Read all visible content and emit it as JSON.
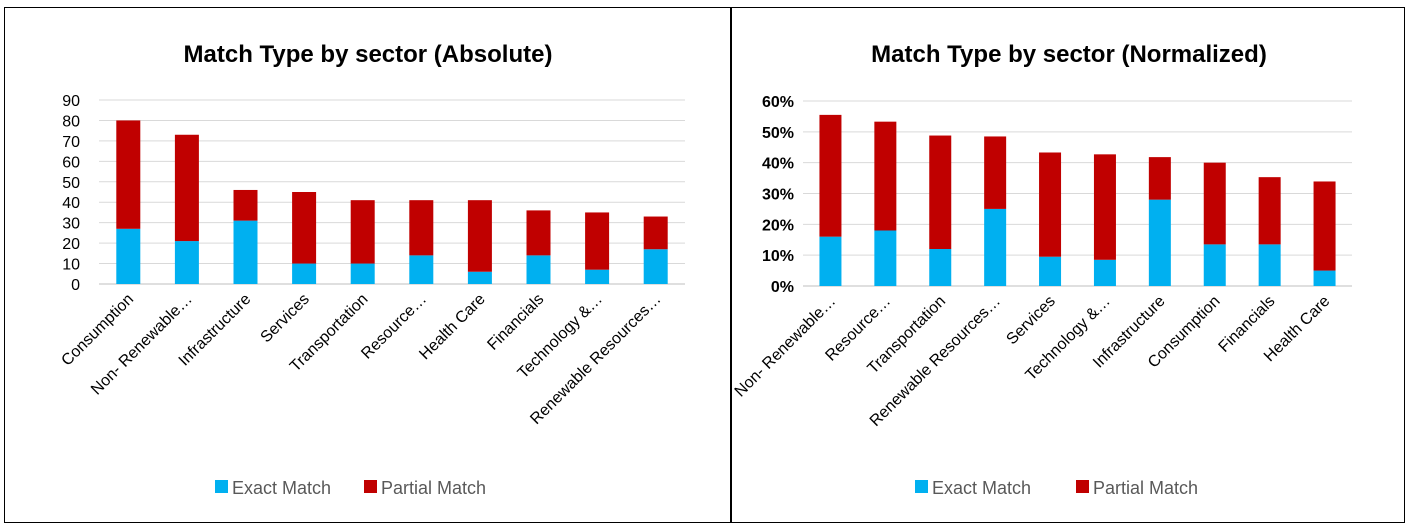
{
  "colors": {
    "exact": "#00B0F0",
    "partial": "#C00000",
    "grid": "#D9D9D9",
    "axis": "#BFBFBF"
  },
  "chart_data": [
    {
      "type": "bar",
      "stacked": true,
      "title": "Match Type by sector (Absolute)",
      "categories": [
        "Consumption",
        "Non- Renewable…",
        "Infrastructure",
        "Services",
        "Transportation",
        "Resource…",
        "Health Care",
        "Financials",
        "Technology &…",
        "Renewable Resources…"
      ],
      "series": [
        {
          "name": "Exact Match",
          "values": [
            27,
            21,
            31,
            10,
            10,
            14,
            6,
            14,
            7,
            17
          ]
        },
        {
          "name": "Partial Match",
          "values": [
            53,
            52,
            15,
            35,
            31,
            27,
            35,
            22,
            28,
            16
          ]
        }
      ],
      "ylim": [
        0,
        90
      ],
      "yticks": [
        "0",
        "10",
        "20",
        "30",
        "40",
        "50",
        "60",
        "70",
        "80",
        "90"
      ],
      "grid": true,
      "legend": "bottom"
    },
    {
      "type": "bar",
      "stacked": true,
      "title": "Match Type by sector (Normalized)",
      "categories": [
        "Non- Renewable…",
        "Resource…",
        "Transportation",
        "Renewable Resources…",
        "Services",
        "Technology &…",
        "Infrastructure",
        "Consumption",
        "Financials",
        "Health Care"
      ],
      "series": [
        {
          "name": "Exact Match",
          "values": [
            0.16,
            0.18,
            0.12,
            0.25,
            0.095,
            0.085,
            0.28,
            0.135,
            0.135,
            0.05
          ]
        },
        {
          "name": "Partial Match",
          "values": [
            0.395,
            0.353,
            0.368,
            0.235,
            0.338,
            0.342,
            0.138,
            0.265,
            0.218,
            0.289
          ]
        }
      ],
      "ylim": [
        0,
        0.6
      ],
      "yticks": [
        "0%",
        "10%",
        "20%",
        "30%",
        "40%",
        "50%",
        "60%"
      ],
      "grid": true,
      "legend": "bottom"
    }
  ]
}
